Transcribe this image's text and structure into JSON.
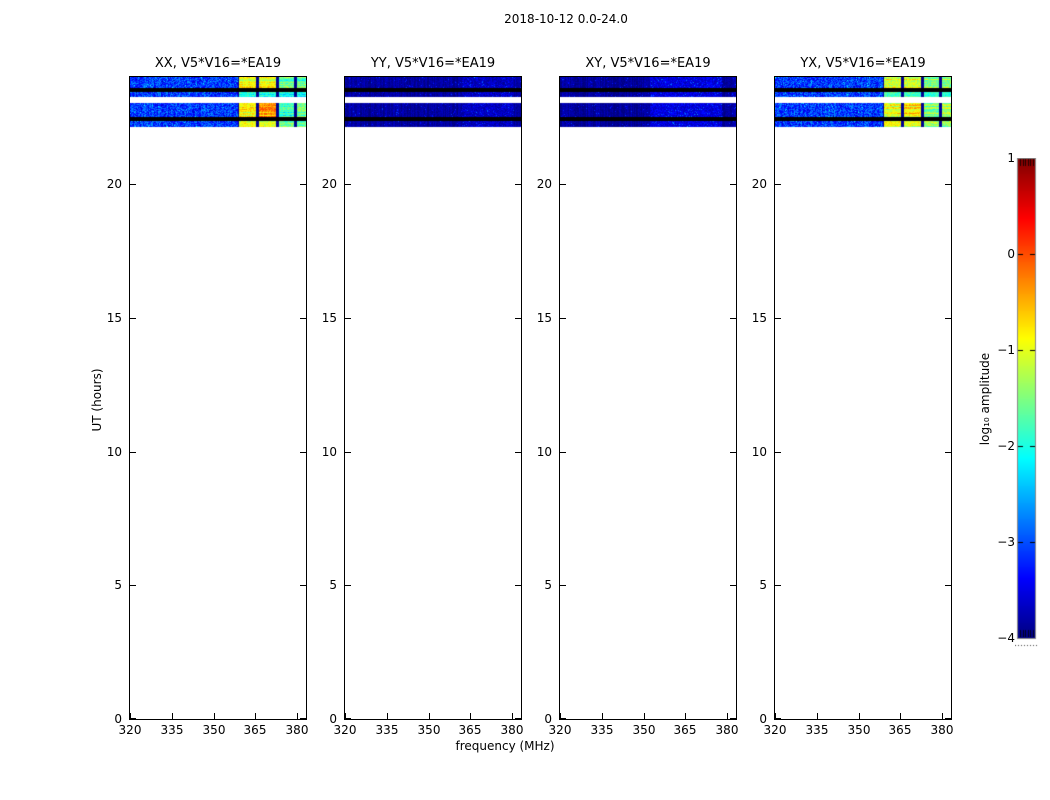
{
  "chart_data": {
    "type": "heatmap",
    "title": "2018-10-12 0.0-24.0",
    "xlabel": "frequency (MHz)",
    "ylabel": "UT (hours)",
    "colorbar_label": "log₁₀ amplitude",
    "colormap": "jet",
    "clim": [
      -4,
      1
    ],
    "colorbar_ticks": [
      1,
      0,
      -1,
      -2,
      -3,
      -4
    ],
    "xlim": [
      320,
      383.2
    ],
    "ylim": [
      0,
      24
    ],
    "xticks": [
      320,
      335,
      350,
      365,
      380
    ],
    "yticks": [
      0,
      5,
      10,
      15,
      20
    ],
    "legend_position": "right-colorbar",
    "grid": false,
    "time_bands": [
      {
        "id": "A",
        "t0": 23.6,
        "t1": 24.0,
        "kind": "data"
      },
      {
        "id": "f1",
        "t0": 23.44,
        "t1": 23.6,
        "kind": "flag"
      },
      {
        "id": "B",
        "t0": 23.26,
        "t1": 23.44,
        "kind": "data"
      },
      {
        "id": "g1",
        "t0": 23.01,
        "t1": 23.26,
        "kind": "gap"
      },
      {
        "id": "C",
        "t0": 22.5,
        "t1": 23.01,
        "kind": "data"
      },
      {
        "id": "f2",
        "t0": 22.37,
        "t1": 22.5,
        "kind": "flag"
      },
      {
        "id": "D",
        "t0": 22.13,
        "t1": 22.37,
        "kind": "data"
      }
    ],
    "rfi_blocks_mhz": [
      [
        358.8,
        365.0
      ],
      [
        366.0,
        372.1
      ],
      [
        373.2,
        378.6
      ],
      [
        379.7,
        383.2
      ]
    ],
    "panels": [
      {
        "id": "xx",
        "label": "XX, V5*V16=*EA19",
        "base": -3.1,
        "spread": 0.9,
        "seed": 101,
        "block_values": {
          "A": [
            -1.0,
            -1.0,
            -1.7,
            -1.7
          ],
          "B": [
            -2.0,
            -2.0,
            -2.1,
            -2.1
          ],
          "C": [
            -0.9,
            -0.4,
            -1.9,
            -1.6
          ],
          "D": [
            -1.0,
            -1.1,
            -1.6,
            -1.7
          ]
        }
      },
      {
        "id": "yy",
        "label": "YY, V5*V16=*EA19",
        "base": -3.85,
        "spread": 0.25,
        "seed": 202,
        "block_values": null,
        "speckle_mhz": [
          362,
          380
        ],
        "speckle_value": -3.7
      },
      {
        "id": "xy",
        "label": "XY, V5*V16=*EA19",
        "base": -3.85,
        "spread": 0.25,
        "seed": 303,
        "block_values": null,
        "speckle_mhz": [
          352,
          378
        ],
        "speckle_value": -3.55
      },
      {
        "id": "yx",
        "label": "YX, V5*V16=*EA19",
        "base": -3.1,
        "spread": 0.9,
        "seed": 404,
        "block_values": {
          "A": [
            -1.1,
            -1.1,
            -1.5,
            -1.5
          ],
          "B": [
            -2.0,
            -2.0,
            -2.1,
            -2.1
          ],
          "C": [
            -1.0,
            -0.8,
            -1.5,
            -1.3
          ],
          "D": [
            -1.1,
            -1.2,
            -1.5,
            -1.6
          ]
        }
      }
    ],
    "colors": {
      "background": "#ffffff",
      "spine": "#000000",
      "flag_band": "#000000",
      "colorbar_outline": "#888888",
      "jet_low": "#000080",
      "jet_high": "#800000"
    }
  }
}
